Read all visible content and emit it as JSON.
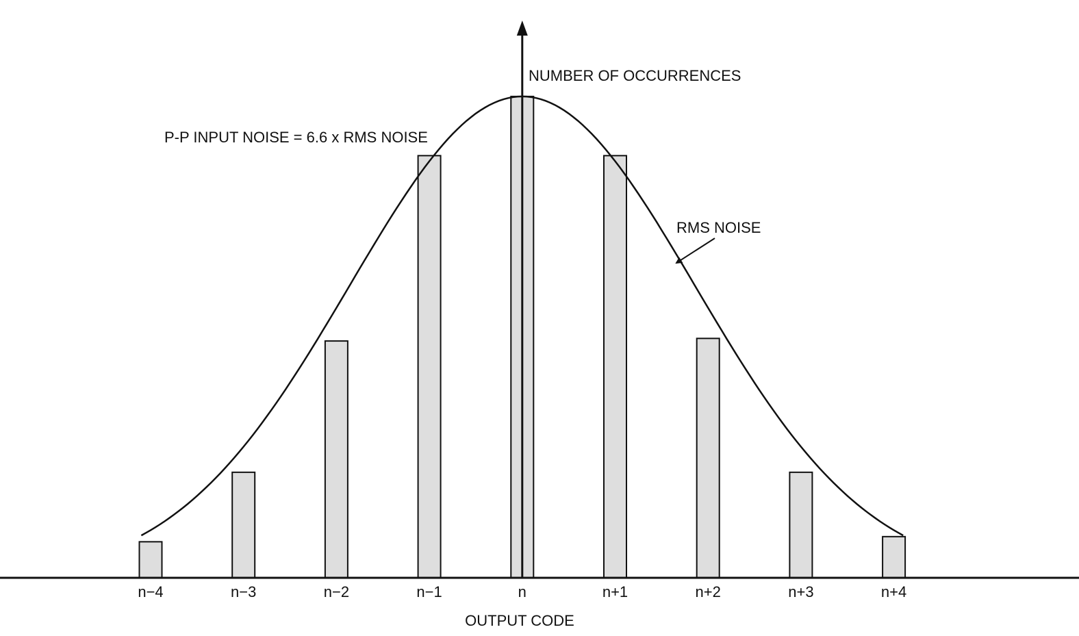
{
  "chart_data": {
    "type": "bar",
    "categories": [
      "n−4",
      "n−3",
      "n−2",
      "n−1",
      "n",
      "n+1",
      "n+2",
      "n+3",
      "n+4"
    ],
    "values": [
      7,
      20.5,
      46,
      82,
      93.5,
      82,
      46.5,
      20.5,
      8
    ],
    "ylim": [
      0,
      100
    ],
    "xlabel": "OUTPUT CODE",
    "ylabel": "NUMBER OF OCCURRENCES",
    "grid": false,
    "legend": "none",
    "annotations": [
      {
        "text": "P-P INPUT NOISE = 6.6 x RMS NOISE"
      },
      {
        "text": "RMS NOISE"
      }
    ],
    "overlay_curve": "gaussian",
    "colors": {
      "bar_fill": "#dedede",
      "stroke": "#111111"
    }
  }
}
